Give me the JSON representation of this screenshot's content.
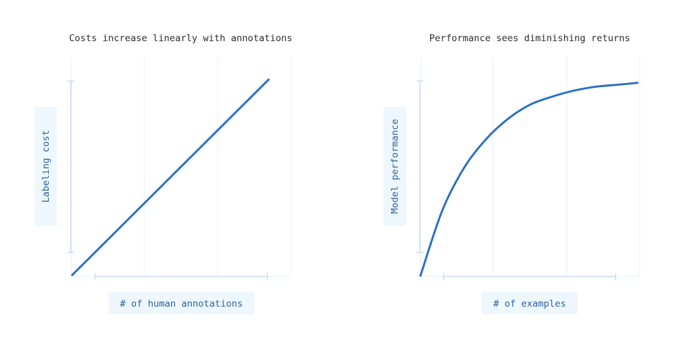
{
  "chart_data": [
    {
      "type": "line",
      "title": "Costs increase linearly with annotations",
      "xlabel": "# of human annotations",
      "ylabel": "Labeling cost",
      "grid": true,
      "series": [
        {
          "x": [
            0,
            1
          ],
          "values": [
            0,
            1
          ]
        }
      ]
    },
    {
      "type": "line",
      "title": "Performance sees diminishing returns",
      "xlabel": "# of examples",
      "ylabel": "Model performance",
      "grid": true,
      "series": [
        {
          "x": [
            0,
            0.1,
            0.2,
            0.3,
            0.4,
            0.5,
            0.6,
            0.7,
            0.8,
            0.9,
            1.0
          ],
          "values": [
            0,
            0.32,
            0.53,
            0.67,
            0.77,
            0.84,
            0.88,
            0.91,
            0.93,
            0.94,
            0.95
          ]
        }
      ]
    }
  ],
  "colors": {
    "line": "#2a6fc7",
    "grid": "#e6eff8",
    "bracket": "#c7dcf2",
    "label_bg": "#eef7fd",
    "label_text": "#2b63a0"
  }
}
